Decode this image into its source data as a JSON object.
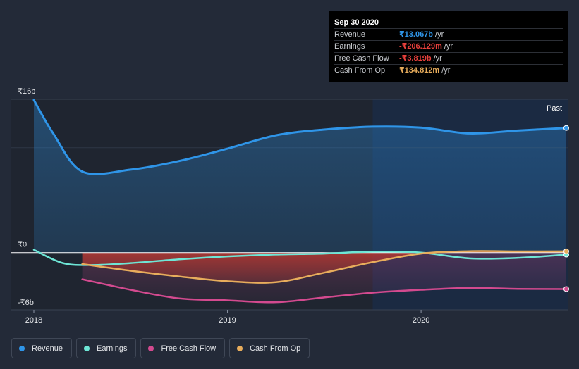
{
  "chart_data": {
    "type": "area",
    "x_start": 2018.0,
    "x_end": 2020.75,
    "x_ticks": [
      {
        "value": 2018.0,
        "label": "2018"
      },
      {
        "value": 2019.0,
        "label": "2019"
      },
      {
        "value": 2020.0,
        "label": "2020"
      }
    ],
    "ylim": [
      -6,
      16
    ],
    "y_ticks": [
      {
        "value": 16,
        "label": "₹16b"
      },
      {
        "value": 0,
        "label": "₹0"
      },
      {
        "value": -6,
        "label": "-₹6b"
      }
    ],
    "past_start": 2019.75,
    "past_label": "Past",
    "series": [
      {
        "name": "Revenue",
        "color": "#2f95e8",
        "points": [
          [
            2018.0,
            16.0
          ],
          [
            2018.1,
            12.5
          ],
          [
            2018.25,
            8.5
          ],
          [
            2018.5,
            8.7
          ],
          [
            2018.75,
            9.6
          ],
          [
            2019.0,
            10.9
          ],
          [
            2019.25,
            12.3
          ],
          [
            2019.5,
            12.9
          ],
          [
            2019.75,
            13.2
          ],
          [
            2020.0,
            13.1
          ],
          [
            2020.25,
            12.5
          ],
          [
            2020.5,
            12.8
          ],
          [
            2020.75,
            13.067
          ]
        ]
      },
      {
        "name": "Earnings",
        "color": "#6ee6d6",
        "points": [
          [
            2018.0,
            0.3
          ],
          [
            2018.15,
            -1.1
          ],
          [
            2018.3,
            -1.3
          ],
          [
            2018.5,
            -1.1
          ],
          [
            2018.75,
            -0.7
          ],
          [
            2019.0,
            -0.4
          ],
          [
            2019.25,
            -0.2
          ],
          [
            2019.5,
            -0.1
          ],
          [
            2019.75,
            0.1
          ],
          [
            2020.0,
            0.0
          ],
          [
            2020.25,
            -0.6
          ],
          [
            2020.5,
            -0.55
          ],
          [
            2020.75,
            -0.206
          ]
        ]
      },
      {
        "name": "Free Cash Flow",
        "color": "#d34a8f",
        "points": [
          [
            2018.25,
            -2.8
          ],
          [
            2018.5,
            -3.9
          ],
          [
            2018.75,
            -4.8
          ],
          [
            2019.0,
            -5.0
          ],
          [
            2019.25,
            -5.2
          ],
          [
            2019.5,
            -4.7
          ],
          [
            2019.75,
            -4.2
          ],
          [
            2020.0,
            -3.9
          ],
          [
            2020.25,
            -3.7
          ],
          [
            2020.5,
            -3.8
          ],
          [
            2020.75,
            -3.819
          ]
        ]
      },
      {
        "name": "Cash From Op",
        "color": "#e8ad5c",
        "points": [
          [
            2018.25,
            -1.2
          ],
          [
            2018.5,
            -1.9
          ],
          [
            2018.75,
            -2.5
          ],
          [
            2019.0,
            -3.0
          ],
          [
            2019.25,
            -3.1
          ],
          [
            2019.5,
            -2.1
          ],
          [
            2019.75,
            -1.0
          ],
          [
            2020.0,
            -0.1
          ],
          [
            2020.25,
            0.15
          ],
          [
            2020.5,
            0.13
          ],
          [
            2020.75,
            0.135
          ]
        ]
      }
    ]
  },
  "tooltip": {
    "date": "Sep 30 2020",
    "rows": [
      {
        "label": "Revenue",
        "value": "₹13.067b",
        "unit": "/yr",
        "color": "#2f95e8"
      },
      {
        "label": "Earnings",
        "value": "-₹206.129m",
        "unit": "/yr",
        "color": "#e8403c"
      },
      {
        "label": "Free Cash Flow",
        "value": "-₹3.819b",
        "unit": "/yr",
        "color": "#e8403c"
      },
      {
        "label": "Cash From Op",
        "value": "₹134.812m",
        "unit": "/yr",
        "color": "#e8ad5c"
      }
    ]
  },
  "legend": [
    {
      "label": "Revenue",
      "color": "#2f95e8"
    },
    {
      "label": "Earnings",
      "color": "#6ee6d6"
    },
    {
      "label": "Free Cash Flow",
      "color": "#d34a8f"
    },
    {
      "label": "Cash From Op",
      "color": "#e8ad5c"
    }
  ]
}
